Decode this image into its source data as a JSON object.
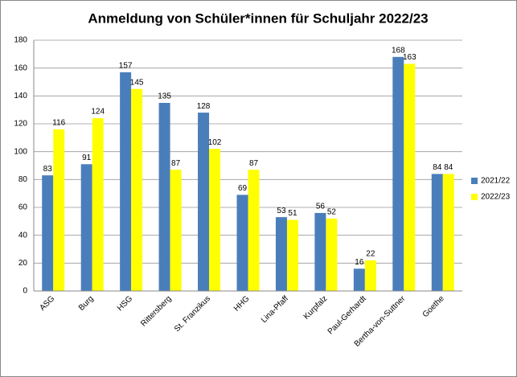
{
  "chart_data": {
    "type": "bar",
    "title": "Anmeldung von Schüler*innen für Schuljahr 2022/23",
    "categories": [
      "ASG",
      "Burg",
      "HSG",
      "Rittersberg",
      "St. Franzikus",
      "HHG",
      "Lina-Pfaff",
      "Kurpfalz",
      "Paul-Gerhardt",
      "Bertha-von-Suttner",
      "Goethe"
    ],
    "series": [
      {
        "name": "2021/22",
        "color": "#4a7ebb",
        "values": [
          83,
          91,
          157,
          135,
          128,
          69,
          53,
          56,
          16,
          168,
          84
        ]
      },
      {
        "name": "2022/23",
        "color": "#ffff00",
        "values": [
          116,
          124,
          145,
          87,
          102,
          87,
          51,
          52,
          22,
          163,
          84
        ]
      }
    ],
    "ylim": [
      0,
      180
    ],
    "yticks": [
      0,
      20,
      40,
      60,
      80,
      100,
      120,
      140,
      160,
      180
    ],
    "grid": true,
    "legend": "right"
  }
}
